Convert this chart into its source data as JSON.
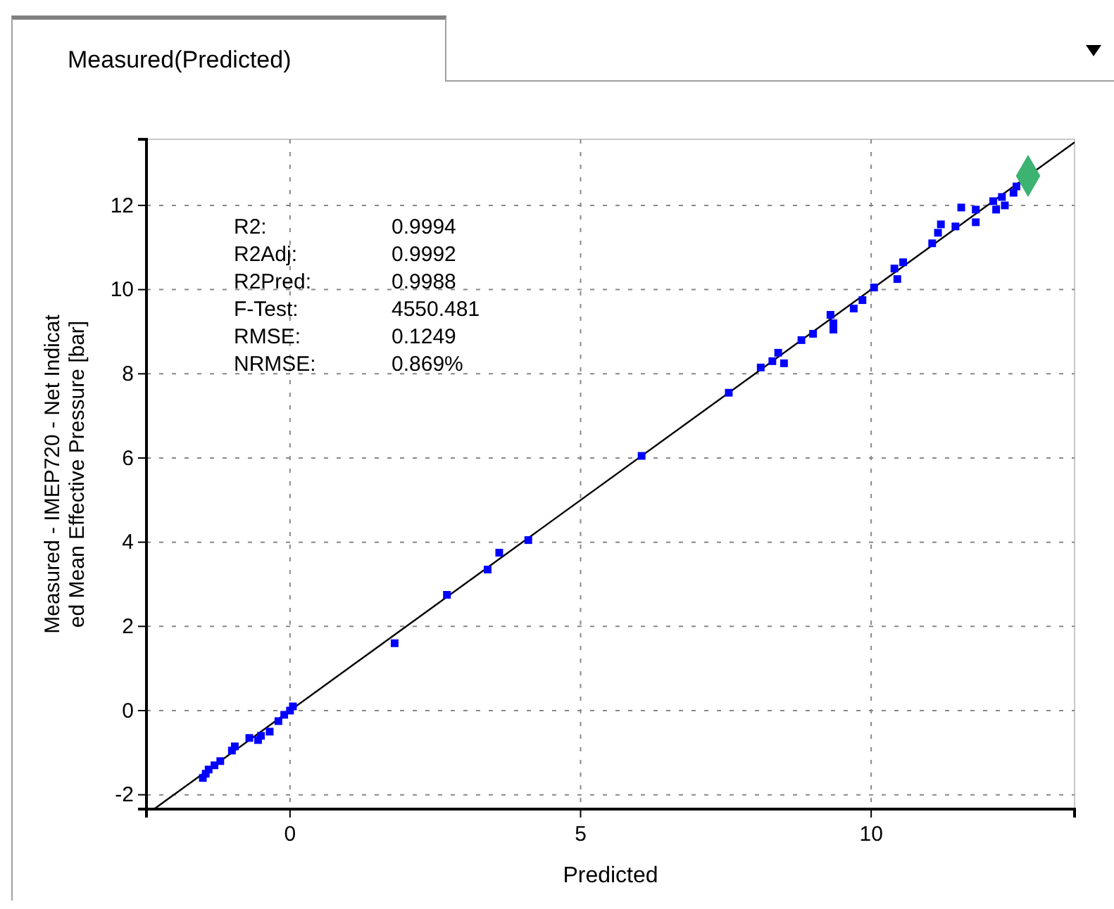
{
  "chart_data": {
    "type": "scatter",
    "title": "Measured(Predicted)",
    "xlabel": "Predicted",
    "ylabel": "Measured - IMEP720 - Net Indicated Mean Effective Pressure [bar]",
    "xlim": [
      -2.47,
      13.5
    ],
    "ylim": [
      -2.34,
      13.57
    ],
    "xticks": [
      0,
      5,
      10
    ],
    "yticks": [
      -2,
      0,
      2,
      4,
      6,
      8,
      10,
      12
    ],
    "grid": true,
    "annotations": [
      "R2:\t0.9994",
      "R2Adj:\t0.9992",
      "R2Pred:\t0.9988",
      "F-Test:\t4550.481",
      "RMSE:\t0.1249",
      "NRMSE:\t0.869%"
    ],
    "series": [
      {
        "type": "line",
        "color": "#000000",
        "x": [
          -2.34,
          13.5
        ],
        "values": [
          -2.34,
          13.5
        ]
      },
      {
        "color": "#0000ff",
        "marker": "square",
        "x": [
          -1.5,
          -1.45,
          -1.4,
          -1.3,
          -1.2,
          -1.0,
          -0.95,
          -0.7,
          -0.55,
          -0.5,
          -0.35,
          -0.2,
          -0.1,
          0.0,
          0.05,
          1.8,
          2.7,
          3.4,
          3.6,
          4.1,
          6.05,
          7.55,
          8.1,
          8.3,
          8.4,
          8.5,
          8.8,
          9.0,
          9.3,
          9.35,
          9.35,
          9.7,
          9.85,
          10.05,
          10.4,
          10.45,
          10.55,
          11.05,
          11.15,
          11.2,
          11.45,
          11.55,
          11.8,
          11.8,
          12.1,
          12.15,
          12.25,
          12.3,
          12.45,
          12.5
        ],
        "values": [
          -1.6,
          -1.5,
          -1.4,
          -1.3,
          -1.2,
          -0.95,
          -0.85,
          -0.65,
          -0.7,
          -0.6,
          -0.5,
          -0.25,
          -0.1,
          0.0,
          0.1,
          1.6,
          2.75,
          3.35,
          3.75,
          4.05,
          6.05,
          7.55,
          8.15,
          8.3,
          8.5,
          8.25,
          8.8,
          8.95,
          9.4,
          9.2,
          9.05,
          9.55,
          9.75,
          10.05,
          10.5,
          10.25,
          10.65,
          11.1,
          11.35,
          11.55,
          11.5,
          11.95,
          11.6,
          11.9,
          12.1,
          11.9,
          12.2,
          12.0,
          12.3,
          12.45
        ]
      },
      {
        "color": "#3cb371",
        "marker": "diamond",
        "x": [
          12.7
        ],
        "values": [
          12.7
        ]
      }
    ]
  }
}
